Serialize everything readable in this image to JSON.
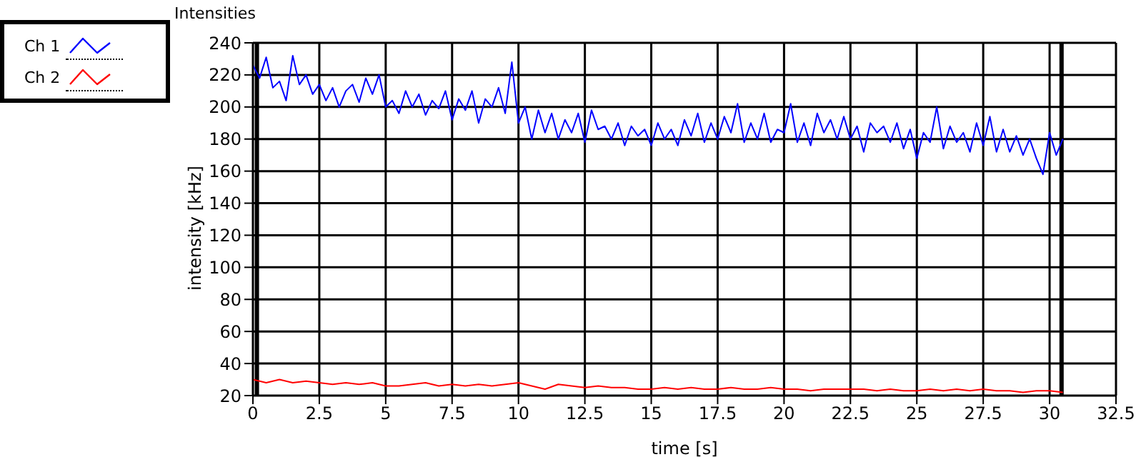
{
  "chart_data": {
    "type": "line",
    "title": "Intensities",
    "xlabel": "time [s]",
    "ylabel": "intensity [kHz]",
    "xlim": [
      0,
      32.5
    ],
    "xticks": [
      0,
      2.5,
      5,
      7.5,
      10,
      12.5,
      15,
      17.5,
      20,
      22.5,
      25,
      27.5,
      30,
      32.5
    ],
    "ylim": [
      20,
      240
    ],
    "yticks": [
      20,
      40,
      60,
      80,
      100,
      120,
      140,
      160,
      180,
      200,
      220,
      240
    ],
    "grid": true,
    "legend": "top left",
    "marker": "none",
    "line_style": "solid",
    "ref_lines": [
      {
        "axis": "x",
        "value": 0.15,
        "color": "#000000"
      },
      {
        "axis": "x",
        "value": 30.45,
        "color": "#000000"
      }
    ],
    "series": [
      {
        "name": "Ch 1",
        "color": "#0000ff",
        "x": [
          0,
          0.25,
          0.5,
          0.75,
          1,
          1.25,
          1.5,
          1.75,
          2,
          2.25,
          2.5,
          2.75,
          3,
          3.25,
          3.5,
          3.75,
          4,
          4.25,
          4.5,
          4.75,
          5,
          5.25,
          5.5,
          5.75,
          6,
          6.25,
          6.5,
          6.75,
          7,
          7.25,
          7.5,
          7.75,
          8,
          8.25,
          8.5,
          8.75,
          9,
          9.25,
          9.5,
          9.75,
          10,
          10.25,
          10.5,
          10.75,
          11,
          11.25,
          11.5,
          11.75,
          12,
          12.25,
          12.5,
          12.75,
          13,
          13.25,
          13.5,
          13.75,
          14,
          14.25,
          14.5,
          14.75,
          15,
          15.25,
          15.5,
          15.75,
          16,
          16.25,
          16.5,
          16.75,
          17,
          17.25,
          17.5,
          17.75,
          18,
          18.25,
          18.5,
          18.75,
          19,
          19.25,
          19.5,
          19.75,
          20,
          20.25,
          20.5,
          20.75,
          21,
          21.25,
          21.5,
          21.75,
          22,
          22.25,
          22.5,
          22.75,
          23,
          23.25,
          23.5,
          23.75,
          24,
          24.25,
          24.5,
          24.75,
          25,
          25.25,
          25.5,
          25.75,
          26,
          26.25,
          26.5,
          26.75,
          27,
          27.25,
          27.5,
          27.75,
          28,
          28.25,
          28.5,
          28.75,
          29,
          29.25,
          29.5,
          29.75,
          30,
          30.25,
          30.5
        ],
        "values": [
          226,
          218,
          231,
          212,
          216,
          204,
          232,
          214,
          220,
          208,
          214,
          204,
          212,
          200,
          210,
          214,
          203,
          218,
          208,
          220,
          200,
          204,
          196,
          210,
          200,
          208,
          195,
          204,
          199,
          210,
          192,
          205,
          198,
          210,
          190,
          205,
          200,
          212,
          196,
          228,
          190,
          200,
          180,
          198,
          184,
          196,
          180,
          192,
          184,
          196,
          178,
          198,
          186,
          188,
          180,
          190,
          176,
          188,
          182,
          186,
          176,
          190,
          180,
          186,
          176,
          192,
          182,
          196,
          178,
          190,
          180,
          194,
          184,
          202,
          178,
          190,
          180,
          196,
          178,
          186,
          184,
          202,
          178,
          190,
          176,
          196,
          184,
          192,
          180,
          194,
          180,
          188,
          172,
          190,
          184,
          188,
          178,
          190,
          174,
          186,
          168,
          184,
          178,
          200,
          174,
          188,
          178,
          184,
          172,
          190,
          176,
          194,
          172,
          186,
          172,
          182,
          170,
          180,
          168,
          158,
          184,
          170,
          180
        ]
      },
      {
        "name": "Ch 2",
        "color": "#ff0000",
        "x": [
          0,
          0.5,
          1,
          1.5,
          2,
          2.5,
          3,
          3.5,
          4,
          4.5,
          5,
          5.5,
          6,
          6.5,
          7,
          7.5,
          8,
          8.5,
          9,
          9.5,
          10,
          10.5,
          11,
          11.5,
          12,
          12.5,
          13,
          13.5,
          14,
          14.5,
          15,
          15.5,
          16,
          16.5,
          17,
          17.5,
          18,
          18.5,
          19,
          19.5,
          20,
          20.5,
          21,
          21.5,
          22,
          22.5,
          23,
          23.5,
          24,
          24.5,
          25,
          25.5,
          26,
          26.5,
          27,
          27.5,
          28,
          28.5,
          29,
          29.5,
          30,
          30.5
        ],
        "values": [
          30,
          28,
          30,
          28,
          29,
          28,
          27,
          28,
          27,
          28,
          26,
          26,
          27,
          28,
          26,
          27,
          26,
          27,
          26,
          27,
          28,
          26,
          24,
          27,
          26,
          25,
          26,
          25,
          25,
          24,
          24,
          25,
          24,
          25,
          24,
          24,
          25,
          24,
          24,
          25,
          24,
          24,
          23,
          24,
          24,
          24,
          24,
          23,
          24,
          23,
          23,
          24,
          23,
          24,
          23,
          24,
          23,
          23,
          22,
          23,
          23,
          22
        ]
      }
    ]
  }
}
